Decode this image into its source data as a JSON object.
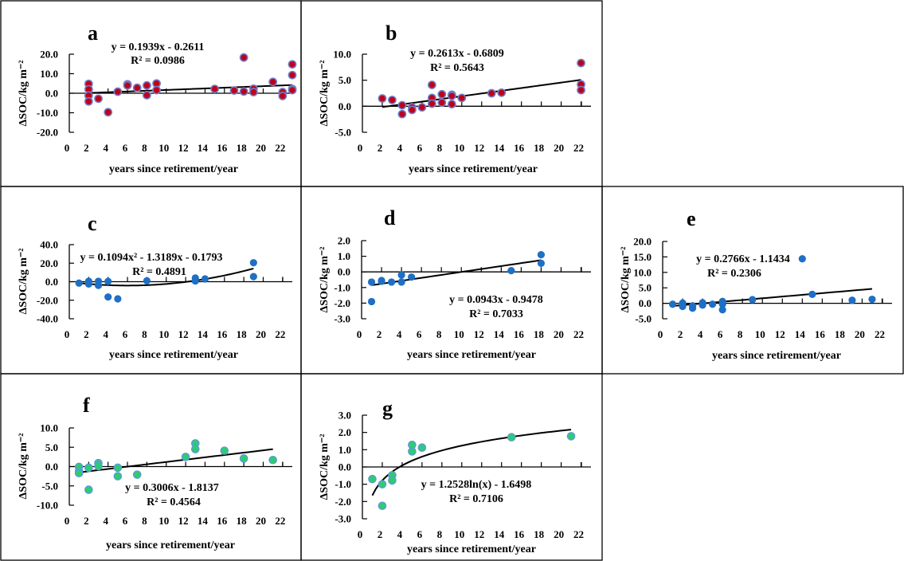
{
  "figure": {
    "background": "#ffffff",
    "colors": {
      "red_marker_fill": "#c0001a",
      "red_marker_edge": "#6f7fc8",
      "blue_marker_fill": "#1f6fc5",
      "green_marker_fill": "#2ecc71",
      "green_marker_edge": "#5b9bd5",
      "trendline": "#000000"
    }
  },
  "chart_data": [
    {
      "id": "a",
      "type": "scatter",
      "panel_label": "a",
      "xlabel": "years since retirement/year",
      "ylabel": "ΔSOC/kg m⁻²",
      "xlim": [
        0,
        22
      ],
      "ylim": [
        -20,
        20
      ],
      "xticks": [
        0,
        2,
        4,
        6,
        8,
        10,
        12,
        14,
        16,
        18,
        20,
        22
      ],
      "yticks": [
        -20,
        -10,
        0,
        10,
        20
      ],
      "ytick_labels": [
        "-20.0",
        "-10.0",
        "0.0",
        "10.0",
        "20.0"
      ],
      "marker": "red",
      "grid": false,
      "equation": "y = 0.1939x - 0.2611",
      "r2": "R² = 0.0986",
      "fit": {
        "kind": "linear",
        "a": 0.1939,
        "b": -0.2611,
        "x_range": [
          2,
          23
        ]
      },
      "points": [
        [
          2,
          4.8
        ],
        [
          2,
          2.0
        ],
        [
          2,
          -1.2
        ],
        [
          2,
          -4.2
        ],
        [
          3,
          -2.8
        ],
        [
          4,
          -9.7
        ],
        [
          5,
          0.8
        ],
        [
          6,
          4.6
        ],
        [
          6,
          4.0
        ],
        [
          7,
          2.8
        ],
        [
          8,
          4.0
        ],
        [
          8,
          -1.0
        ],
        [
          9,
          5.0
        ],
        [
          9,
          1.6
        ],
        [
          15,
          2.2
        ],
        [
          17,
          1.4
        ],
        [
          18,
          18.3
        ],
        [
          18,
          0.9
        ],
        [
          19,
          2.3
        ],
        [
          19,
          0.6
        ],
        [
          21,
          5.8
        ],
        [
          22,
          0.6
        ],
        [
          22,
          -1.4
        ],
        [
          23,
          14.8
        ],
        [
          23,
          9.3
        ],
        [
          23,
          2.2
        ],
        [
          23,
          1.6
        ]
      ]
    },
    {
      "id": "b",
      "type": "scatter",
      "panel_label": "b",
      "xlabel": "years since retirement/year",
      "ylabel": "ΔSOC/kg m⁻²",
      "xlim": [
        0,
        22
      ],
      "ylim": [
        -5,
        10
      ],
      "xticks": [
        0,
        2,
        4,
        6,
        8,
        10,
        12,
        14,
        16,
        18,
        20,
        22
      ],
      "yticks": [
        -5,
        0,
        5,
        10
      ],
      "ytick_labels": [
        "-5.0",
        "0.0",
        "5.0",
        "10.0"
      ],
      "marker": "red",
      "grid": false,
      "equation": "y = 0.2613x - 0.6809",
      "r2": "R² = 0.5643",
      "fit": {
        "kind": "linear",
        "a": 0.2613,
        "b": -0.6809,
        "x_range": [
          2,
          22
        ]
      },
      "points": [
        [
          2,
          1.5
        ],
        [
          3,
          1.2
        ],
        [
          4,
          0.2
        ],
        [
          4,
          -1.5
        ],
        [
          5,
          -0.2
        ],
        [
          5,
          -0.7
        ],
        [
          6,
          -0.2
        ],
        [
          7,
          4.1
        ],
        [
          7,
          1.6
        ],
        [
          7,
          0.5
        ],
        [
          8,
          2.3
        ],
        [
          8,
          0.7
        ],
        [
          9,
          2.2
        ],
        [
          9,
          2.0
        ],
        [
          9,
          0.4
        ],
        [
          10,
          1.6
        ],
        [
          13,
          2.5
        ],
        [
          14,
          2.6
        ],
        [
          22,
          8.3
        ],
        [
          22,
          4.2
        ],
        [
          22,
          3.1
        ]
      ]
    },
    {
      "id": "c",
      "type": "scatter",
      "panel_label": "c",
      "xlabel": "years since retirement/year",
      "ylabel": "ΔSOC/kg m⁻²",
      "xlim": [
        0,
        22
      ],
      "ylim": [
        -40,
        40
      ],
      "xticks": [
        0,
        2,
        4,
        6,
        8,
        10,
        12,
        14,
        16,
        18,
        20,
        22
      ],
      "yticks": [
        -40,
        -20,
        0,
        20,
        40
      ],
      "ytick_labels": [
        "-40.0",
        "-20.0",
        "0.0",
        "20.0",
        "40.0"
      ],
      "marker": "blue",
      "grid": false,
      "equation": "y = 0.1094x² - 1.3189x - 0.1793",
      "r2": "R² = 0.4891",
      "fit": {
        "kind": "poly2",
        "a": 0.1094,
        "b": -1.3189,
        "c": -0.1793,
        "x_range": [
          1,
          19
        ]
      },
      "points": [
        [
          1,
          -1.5
        ],
        [
          2,
          0.5
        ],
        [
          2,
          -2.5
        ],
        [
          3,
          0.5
        ],
        [
          3,
          -4.0
        ],
        [
          4,
          0.3
        ],
        [
          4,
          -16.5
        ],
        [
          5,
          -18.5
        ],
        [
          8,
          1.0
        ],
        [
          13,
          4.0
        ],
        [
          13,
          0.8
        ],
        [
          14,
          3.0
        ],
        [
          19,
          20.5
        ],
        [
          19,
          5.5
        ]
      ]
    },
    {
      "id": "d",
      "type": "scatter",
      "panel_label": "d",
      "xlabel": "years since retirement/year",
      "ylabel": "ΔSOC/kg m⁻²",
      "xlim": [
        0,
        22
      ],
      "ylim": [
        -3,
        2
      ],
      "xticks": [
        0,
        2,
        4,
        6,
        8,
        10,
        12,
        14,
        16,
        18,
        20,
        22
      ],
      "yticks": [
        -3,
        -2,
        -1,
        0,
        1,
        2
      ],
      "ytick_labels": [
        "-3.0",
        "-2.0",
        "-1.0",
        "0.0",
        "1.0",
        "2.0"
      ],
      "marker": "blue",
      "grid": false,
      "equation": "y = 0.0943x - 0.9478",
      "r2": "R² = 0.7033",
      "fit": {
        "kind": "linear",
        "a": 0.0943,
        "b": -0.9478,
        "x_range": [
          1,
          18
        ]
      },
      "points": [
        [
          1,
          -0.65
        ],
        [
          1,
          -1.9
        ],
        [
          2,
          -0.55
        ],
        [
          2,
          -0.6
        ],
        [
          3,
          -0.65
        ],
        [
          4,
          -0.2
        ],
        [
          4,
          -0.65
        ],
        [
          5,
          -0.33
        ],
        [
          15,
          0.08
        ],
        [
          18,
          1.1
        ],
        [
          18,
          0.55
        ]
      ]
    },
    {
      "id": "e",
      "type": "scatter",
      "panel_label": "e",
      "xlabel": "years since retirement/year",
      "ylabel": "ΔSOC/kg m⁻²",
      "xlim": [
        0,
        22
      ],
      "ylim": [
        -5,
        20
      ],
      "xticks": [
        0,
        2,
        4,
        6,
        8,
        10,
        12,
        14,
        16,
        18,
        20,
        22
      ],
      "yticks": [
        -5,
        0,
        5,
        10,
        15,
        20
      ],
      "ytick_labels": [
        "-5.0",
        "0.0",
        "5.0",
        "10.0",
        "15.0",
        "20.0"
      ],
      "marker": "blue",
      "grid": false,
      "equation": "y = 0.2766x - 1.1434",
      "r2": "R² = 0.2306",
      "fit": {
        "kind": "linear",
        "a": 0.2766,
        "b": -1.1434,
        "x_range": [
          1,
          21
        ]
      },
      "points": [
        [
          1,
          -0.3
        ],
        [
          2,
          0.1
        ],
        [
          2,
          -1.0
        ],
        [
          3,
          -0.8
        ],
        [
          3,
          -1.6
        ],
        [
          4,
          0.2
        ],
        [
          4,
          -0.6
        ],
        [
          5,
          -0.3
        ],
        [
          6,
          0.6
        ],
        [
          6,
          -0.3
        ],
        [
          6,
          -2.1
        ],
        [
          9,
          1.2
        ],
        [
          14,
          14.4
        ],
        [
          15,
          2.9
        ],
        [
          19,
          1.0
        ],
        [
          21,
          1.3
        ]
      ]
    },
    {
      "id": "f",
      "type": "scatter",
      "panel_label": "f",
      "xlabel": "years since retirement/year",
      "ylabel": "ΔSOC/kg m⁻²",
      "xlim": [
        0,
        22
      ],
      "ylim": [
        -10,
        10
      ],
      "xticks": [
        0,
        2,
        4,
        6,
        8,
        10,
        12,
        14,
        16,
        18,
        20,
        22
      ],
      "yticks": [
        -10,
        -5,
        0,
        5,
        10
      ],
      "ytick_labels": [
        "-10.0",
        "-5.0",
        "0.0",
        "5.0",
        "10.0"
      ],
      "marker": "green",
      "grid": false,
      "equation": "y = 0.3006x - 1.8137",
      "r2": "R² = 0.4564",
      "fit": {
        "kind": "linear",
        "a": 0.3006,
        "b": -1.8137,
        "x_range": [
          1,
          21
        ]
      },
      "points": [
        [
          1,
          -0.1
        ],
        [
          1,
          -1.2
        ],
        [
          1,
          -1.7
        ],
        [
          2,
          -0.3
        ],
        [
          2,
          -6.0
        ],
        [
          3,
          0.9
        ],
        [
          3,
          0.1
        ],
        [
          5,
          -0.3
        ],
        [
          5,
          -2.5
        ],
        [
          7,
          -2.1
        ],
        [
          12,
          2.5
        ],
        [
          13,
          6.0
        ],
        [
          13,
          4.5
        ],
        [
          16,
          4.1
        ],
        [
          18,
          2.1
        ],
        [
          21,
          1.7
        ]
      ]
    },
    {
      "id": "g",
      "type": "scatter",
      "panel_label": "g",
      "xlabel": "years since retirement/year",
      "ylabel": "ΔSOC/kg m⁻²",
      "xlim": [
        0,
        22
      ],
      "ylim": [
        -3,
        3
      ],
      "xticks": [
        0,
        2,
        4,
        6,
        8,
        10,
        12,
        14,
        16,
        18,
        20,
        22
      ],
      "yticks": [
        -3,
        -2,
        -1,
        0,
        1,
        2,
        3
      ],
      "ytick_labels": [
        "-3.0",
        "-2.0",
        "-1.0",
        "0.0",
        "1.0",
        "2.0",
        "3.0"
      ],
      "marker": "green",
      "grid": false,
      "equation": "y = 1.2528ln(x) - 1.6498",
      "r2": "R² = 0.7106",
      "fit": {
        "kind": "log",
        "a": 1.2528,
        "b": -1.6498,
        "x_range": [
          1,
          21
        ]
      },
      "points": [
        [
          1,
          -0.7
        ],
        [
          2,
          -1.0
        ],
        [
          2,
          -2.25
        ],
        [
          3,
          -0.48
        ],
        [
          3,
          -0.78
        ],
        [
          5,
          1.28
        ],
        [
          5,
          0.9
        ],
        [
          6,
          1.12
        ],
        [
          15,
          1.72
        ],
        [
          21,
          1.78
        ]
      ]
    }
  ]
}
